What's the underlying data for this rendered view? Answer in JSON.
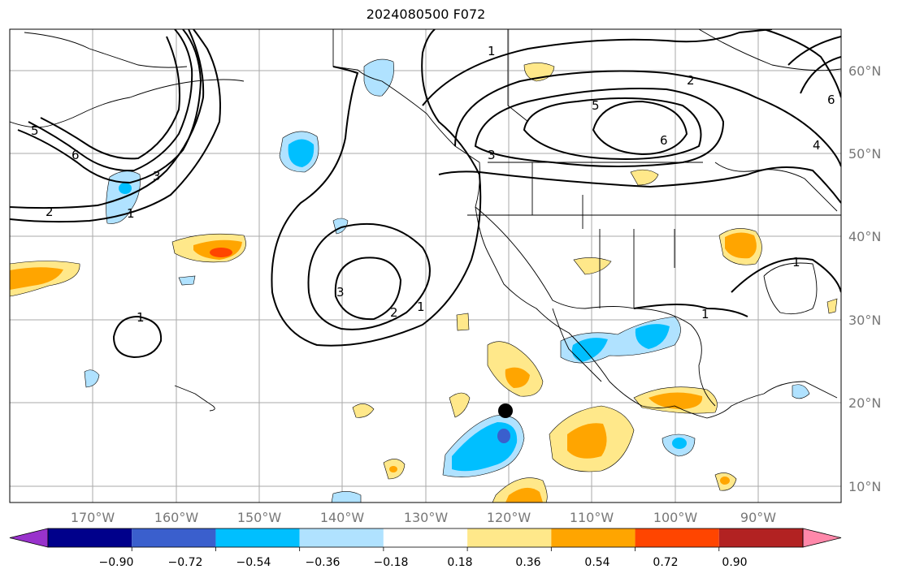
{
  "title": "2024080500 F072",
  "map": {
    "lat_labels": [
      "60°N",
      "50°N",
      "40°N",
      "30°N",
      "20°N",
      "10°N"
    ],
    "lon_labels": [
      "170°W",
      "160°W",
      "150°W",
      "140°W",
      "130°W",
      "120°W",
      "110°W",
      "100°W",
      "90°W"
    ],
    "contour_labels": [
      "1",
      "2",
      "3",
      "4",
      "5",
      "6"
    ]
  },
  "colorbar": {
    "tick_labels": [
      "−0.90",
      "−0.72",
      "−0.54",
      "−0.36",
      "−0.18",
      "0.18",
      "0.36",
      "0.54",
      "0.72",
      "0.90"
    ],
    "colors": [
      "#9932cc",
      "#00008b",
      "#3a5fcd",
      "#00bfff",
      "#b0e2ff",
      "#ffffff",
      "#ffe88a",
      "#ffa500",
      "#ff4500",
      "#b22222",
      "#ff88aa"
    ]
  }
}
